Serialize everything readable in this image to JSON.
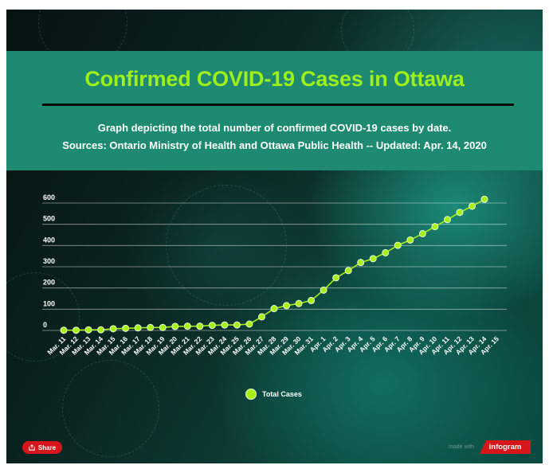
{
  "header": {
    "title": "Confirmed COVID-19 Cases in Ottawa",
    "subtitle_line1": "Graph depicting the total number of confirmed COVID-19 cases by date.",
    "subtitle_line2": "Sources:  Ontario Ministry of Health and Ottawa Public Health -- Updated: Apr. 14, 2020"
  },
  "chart_data": {
    "type": "line",
    "title": "Confirmed COVID-19 Cases in Ottawa",
    "xlabel": "",
    "ylabel": "",
    "ylim": [
      0,
      600
    ],
    "yticks": [
      0,
      100,
      200,
      300,
      400,
      500,
      600
    ],
    "grid": true,
    "legend_position": "bottom-center",
    "categories": [
      "Mar. 11",
      "Mar. 12",
      "Mar. 13",
      "Mar. 14",
      "Mar. 15",
      "Mar. 16",
      "Mar. 17",
      "Mar. 18",
      "Mar. 19",
      "Mar. 20",
      "Mar. 21",
      "Mar. 22",
      "Mar. 23",
      "Mar. 24",
      "Mar. 25",
      "Mar. 26",
      "Mar. 27",
      "Mar. 28",
      "Mar. 29",
      "Mar. 30",
      "Mar. 31",
      "Apr. 1",
      "Apr. 2",
      "Apr. 3",
      "Apr. 4",
      "Apr. 5",
      "Apr. 6",
      "Apr. 7",
      "Apr. 8",
      "Apr. 9",
      "Apr. 10",
      "Apr. 11",
      "Apr. 12",
      "Apr. 13",
      "Apr. 14",
      "Apr. 15"
    ],
    "series": [
      {
        "name": "Total Cases",
        "color": "#a6f014",
        "values": [
          1,
          1,
          3,
          3,
          8,
          10,
          12,
          14,
          14,
          19,
          20,
          20,
          24,
          26,
          26,
          30,
          64,
          103,
          117,
          127,
          141,
          190,
          248,
          282,
          320,
          338,
          366,
          401,
          426,
          456,
          489,
          522,
          556,
          585,
          618,
          null
        ]
      }
    ]
  },
  "footer": {
    "share_label": "Share",
    "made_with_label": "made with",
    "brand_label": "infogram"
  },
  "colors": {
    "header_bg": "#1e8a72",
    "title_color": "#9ef01a",
    "line_color": "#a6f014",
    "share_bg": "#d6161b"
  }
}
